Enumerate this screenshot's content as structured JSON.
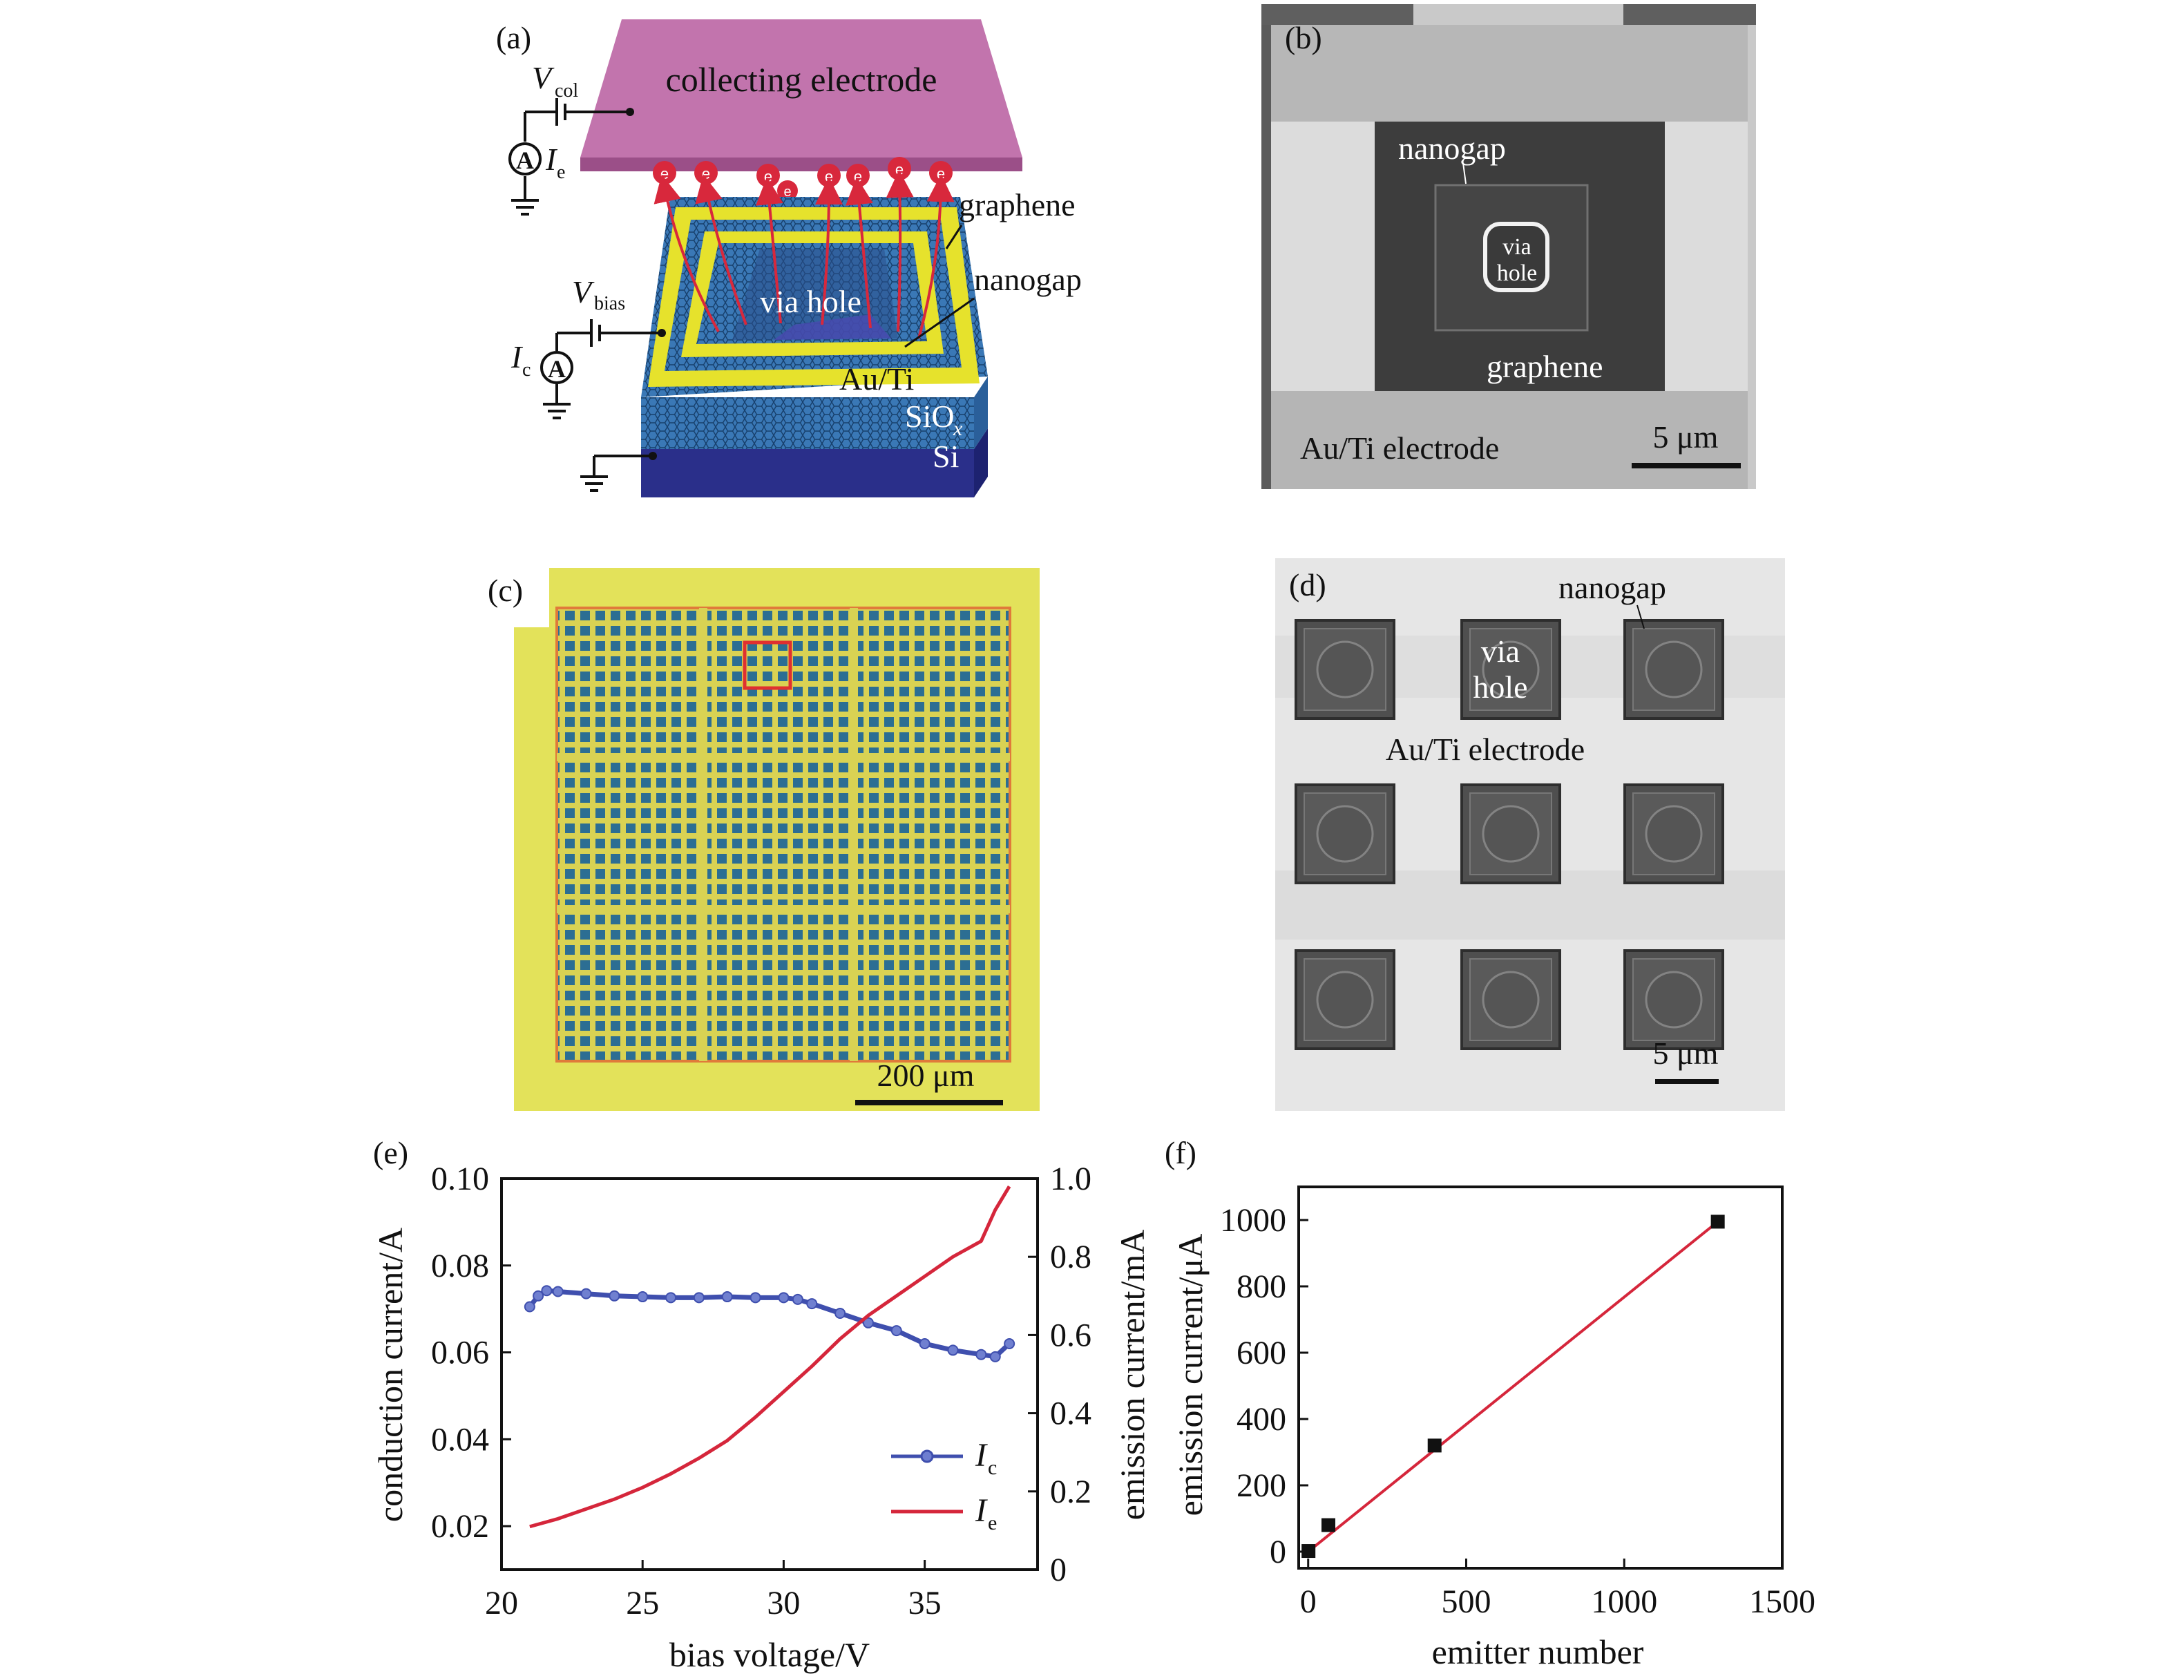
{
  "panels": {
    "a": {
      "label": "(a)",
      "electrode": "collecting electrode",
      "v_col": "V",
      "v_col_sub": "col",
      "i_e": "I",
      "i_e_sub": "e",
      "graphene": "graphene",
      "nanogap": "nanogap",
      "via_hole": "via hole",
      "v_bias": "V",
      "v_bias_sub": "bias",
      "i_c": "I",
      "i_c_sub": "c",
      "au_ti": "Au/Ti",
      "siox": "SiO",
      "siox_sub": "x",
      "si": "Si",
      "ammeter": "A",
      "electron": "e",
      "colors": {
        "electrode": "#c274ad",
        "gold": "#e6e22c",
        "substrate_oxide": "#2f6fb8",
        "silicon": "#2a2f8a",
        "arrow": "#d8283c"
      }
    },
    "b": {
      "label": "(b)",
      "nanogap": "nanogap",
      "via": "via",
      "hole": "hole",
      "graphene": "graphene",
      "electrode": "Au/Ti electrode",
      "scale": "5 μm"
    },
    "c": {
      "label": "(c)",
      "scale": "200 μm",
      "colors": {
        "background": "#e3e25a",
        "grid_cell": "#2c6e93",
        "highlight": "#e03030"
      }
    },
    "d": {
      "label": "(d)",
      "nanogap": "nanogap",
      "via": "via",
      "hole": "hole",
      "electrode": "Au/Ti electrode",
      "scale": "5 μm"
    }
  },
  "chart_data": [
    {
      "panel_label": "(e)",
      "type": "line",
      "xlabel": "bias voltage/V",
      "ylabel_left": "conduction current/A",
      "ylabel_right": "emission current/mA",
      "xlim": [
        20,
        39
      ],
      "ylim_left": [
        0.01,
        0.1
      ],
      "ylim_right": [
        0,
        1.0
      ],
      "xticks": [
        "20",
        "25",
        "30",
        "35"
      ],
      "yticks_left": [
        "0.02",
        "0.04",
        "0.06",
        "0.08",
        "0.10"
      ],
      "yticks_right": [
        "0",
        "0.2",
        "0.4",
        "0.6",
        "0.8",
        "1.0"
      ],
      "legend_position": "bottom-right",
      "series": [
        {
          "name": "I",
          "name_sub": "c",
          "axis": "left",
          "color": "#3f4fae",
          "x": [
            21,
            21.3,
            21.6,
            22,
            23,
            24,
            25,
            26,
            27,
            28,
            29,
            30,
            30.5,
            31,
            32,
            33,
            34,
            35,
            36,
            37,
            37.5,
            38
          ],
          "y": [
            0.0705,
            0.073,
            0.0742,
            0.074,
            0.0735,
            0.073,
            0.0728,
            0.0726,
            0.0726,
            0.0728,
            0.0726,
            0.0726,
            0.0722,
            0.0712,
            0.069,
            0.0668,
            0.065,
            0.062,
            0.0605,
            0.0595,
            0.059,
            0.062
          ]
        },
        {
          "name": "I",
          "name_sub": "e",
          "axis": "right",
          "color": "#d5263b",
          "x": [
            21,
            22,
            23,
            24,
            25,
            26,
            27,
            28,
            29,
            30,
            31,
            32,
            33,
            34,
            35,
            36,
            37,
            37.5,
            38
          ],
          "y": [
            0.11,
            0.13,
            0.155,
            0.18,
            0.21,
            0.245,
            0.285,
            0.33,
            0.39,
            0.455,
            0.52,
            0.59,
            0.65,
            0.7,
            0.75,
            0.8,
            0.84,
            0.92,
            0.98
          ]
        }
      ]
    },
    {
      "panel_label": "(f)",
      "type": "scatter",
      "xlabel": "emitter number",
      "ylabel": "emission current/μA",
      "xlim": [
        -30,
        1500
      ],
      "ylim": [
        -50,
        1100
      ],
      "xticks": [
        "0",
        "500",
        "1000",
        "1500"
      ],
      "yticks": [
        "0",
        "200",
        "400",
        "600",
        "800",
        "1000"
      ],
      "points": {
        "x": [
          1,
          64,
          400,
          1296
        ],
        "y": [
          2,
          80,
          320,
          995
        ]
      },
      "fit": {
        "x": [
          0,
          1296
        ],
        "y": [
          0,
          995
        ]
      },
      "colors": {
        "points": "#111111",
        "fit": "#d5263b"
      }
    }
  ]
}
